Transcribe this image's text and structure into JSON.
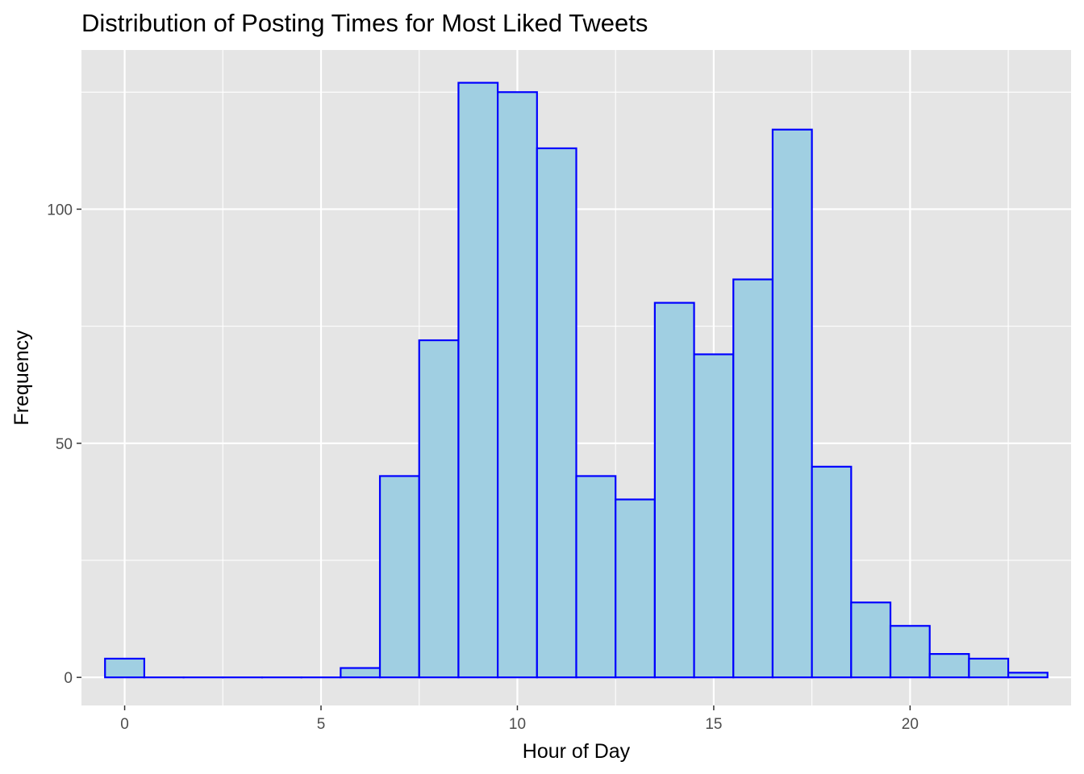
{
  "chart_data": {
    "type": "bar",
    "title": "Distribution of Posting Times for Most Liked Tweets",
    "xlabel": "Hour of Day",
    "ylabel": "Frequency",
    "x": [
      0,
      1,
      2,
      3,
      4,
      5,
      6,
      7,
      8,
      9,
      10,
      11,
      12,
      13,
      14,
      15,
      16,
      17,
      18,
      19,
      20,
      21,
      22,
      23
    ],
    "values": [
      4,
      0,
      0,
      0,
      0,
      0,
      2,
      43,
      72,
      127,
      125,
      113,
      43,
      38,
      80,
      69,
      85,
      117,
      45,
      16,
      11,
      5,
      4,
      1
    ],
    "bin_width": 1,
    "xlim": [
      -1.1,
      24.1
    ],
    "ylim": [
      -6,
      134
    ],
    "x_ticks": [
      0,
      5,
      10,
      15,
      20
    ],
    "y_ticks": [
      0,
      50,
      100
    ],
    "grid": true,
    "colors": {
      "panel_background": "#e5e5e5",
      "grid": "#ffffff",
      "bar_fill": "#a0cfe2",
      "bar_outline": "#0000ff"
    }
  }
}
